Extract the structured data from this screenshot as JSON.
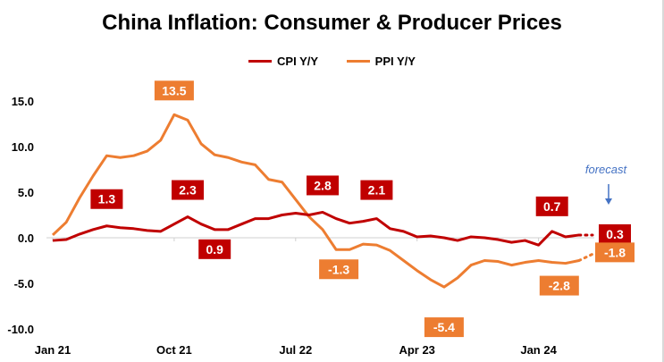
{
  "chart_data": {
    "type": "line",
    "title": "China Inflation: Consumer & Producer Prices",
    "xlabel": "",
    "ylabel": "",
    "ylim": [
      -10,
      15
    ],
    "yticks": [
      "15.0",
      "10.0",
      "5.0",
      "0.0",
      "-5.0",
      "-10.0"
    ],
    "ytick_values": [
      15,
      10,
      5,
      0,
      -5,
      -10
    ],
    "x_start": "Jan 21",
    "xticks": [
      {
        "label": "Jan 21",
        "index": 0
      },
      {
        "label": "Oct 21",
        "index": 9
      },
      {
        "label": "Jul 22",
        "index": 18
      },
      {
        "label": "Apr 23",
        "index": 27
      },
      {
        "label": "Jan 24",
        "index": 36
      }
    ],
    "grid": false,
    "legend_position": "top",
    "forecast_note": "forecast",
    "series": [
      {
        "name": "CPI Y/Y",
        "color": "#c00000",
        "values": [
          -0.3,
          -0.2,
          0.4,
          0.9,
          1.3,
          1.1,
          1.0,
          0.8,
          0.7,
          1.5,
          2.3,
          1.5,
          0.9,
          0.9,
          1.5,
          2.1,
          2.1,
          2.5,
          2.7,
          2.5,
          2.8,
          2.1,
          1.6,
          1.8,
          2.1,
          1.0,
          0.7,
          0.1,
          0.2,
          0.0,
          -0.3,
          0.1,
          0.0,
          -0.2,
          -0.5,
          -0.3,
          -0.8,
          0.7,
          0.1,
          0.3
        ],
        "forecast": 0.3
      },
      {
        "name": "PPI Y/Y",
        "color": "#ed7d31",
        "values": [
          0.3,
          1.7,
          4.4,
          6.8,
          9.0,
          8.8,
          9.0,
          9.5,
          10.7,
          13.5,
          12.9,
          10.3,
          9.1,
          8.8,
          8.3,
          8.0,
          6.4,
          6.1,
          4.2,
          2.3,
          0.9,
          -1.3,
          -1.3,
          -0.7,
          -0.8,
          -1.4,
          -2.5,
          -3.6,
          -4.6,
          -5.4,
          -4.4,
          -3.0,
          -2.5,
          -2.6,
          -3.0,
          -2.7,
          -2.5,
          -2.7,
          -2.8,
          -2.5
        ],
        "forecast": -1.8
      }
    ],
    "annotations": [
      {
        "series": 1,
        "index": 9,
        "text": "13.5"
      },
      {
        "series": 0,
        "index": 4,
        "text": "1.3"
      },
      {
        "series": 0,
        "index": 10,
        "text": "2.3"
      },
      {
        "series": 0,
        "index": 12,
        "text": "0.9"
      },
      {
        "series": 0,
        "index": 20,
        "text": "2.8"
      },
      {
        "series": 1,
        "index": 21,
        "text": "-1.3"
      },
      {
        "series": 0,
        "index": 24,
        "text": "2.1"
      },
      {
        "series": 1,
        "index": 29,
        "text": "-5.4"
      },
      {
        "series": 0,
        "index": 37,
        "text": "0.7"
      },
      {
        "series": 1,
        "index": 38,
        "text": "-2.8"
      },
      {
        "series": 0,
        "index": 40,
        "text": "0.3"
      },
      {
        "series": 1,
        "index": 40,
        "text": "-1.8"
      }
    ]
  }
}
